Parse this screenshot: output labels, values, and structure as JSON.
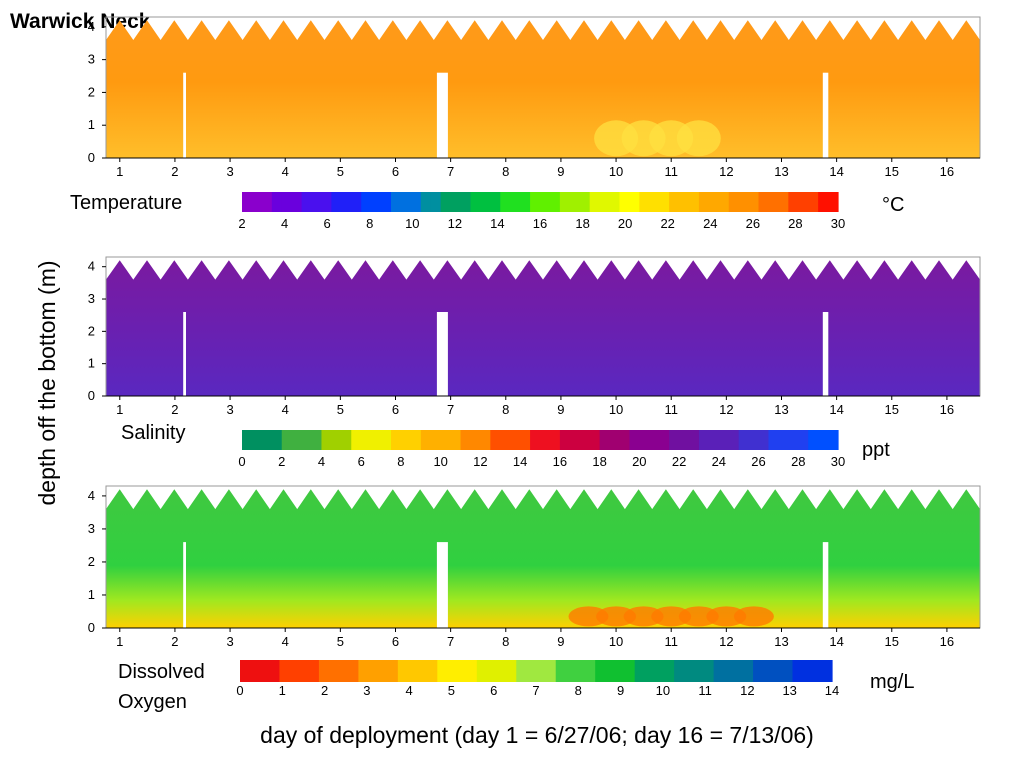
{
  "title": "Warwick Neck",
  "y_axis_label": "depth off the bottom (m)",
  "x_axis_label": "day of deployment (day 1 = 6/27/06; day 16 = 7/13/06)",
  "chart_data": [
    {
      "type": "heatmap",
      "name": "Temperature",
      "unit": "°C",
      "x_ticks": [
        "1",
        "2",
        "3",
        "4",
        "5",
        "6",
        "7",
        "8",
        "9",
        "10",
        "11",
        "12",
        "13",
        "14",
        "15",
        "16"
      ],
      "y_ticks": [
        "0",
        "1",
        "2",
        "3",
        "4"
      ],
      "xlim": [
        0.75,
        16.6
      ],
      "ylim": [
        0,
        4.3
      ],
      "colorbar": {
        "label": "Temperature",
        "unit_label": "°C",
        "ticks": [
          "2",
          "4",
          "6",
          "8",
          "10",
          "12",
          "14",
          "16",
          "18",
          "20",
          "22",
          "24",
          "26",
          "28",
          "30"
        ],
        "range": [
          2,
          30
        ],
        "colors": [
          "#8a00cc",
          "#6a00dd",
          "#4a10ee",
          "#2020f8",
          "#0040ff",
          "#0070e0",
          "#008fa0",
          "#00a060",
          "#00c040",
          "#20e020",
          "#60f000",
          "#a0f000",
          "#e0f800",
          "#ffff00",
          "#ffe000",
          "#ffc000",
          "#ffa800",
          "#ff9000",
          "#ff7000",
          "#ff4000",
          "#ff1000"
        ]
      },
      "dominant_value_range": [
        20,
        24
      ],
      "warm_spots_days": [
        10,
        10.5,
        11,
        11.5
      ]
    },
    {
      "type": "heatmap",
      "name": "Salinity",
      "unit": "ppt",
      "x_ticks": [
        "1",
        "2",
        "3",
        "4",
        "5",
        "6",
        "7",
        "8",
        "9",
        "10",
        "11",
        "12",
        "13",
        "14",
        "15",
        "16"
      ],
      "y_ticks": [
        "0",
        "1",
        "2",
        "3",
        "4"
      ],
      "xlim": [
        0.75,
        16.6
      ],
      "ylim": [
        0,
        4.3
      ],
      "colorbar": {
        "label": "Salinity",
        "unit_label": "ppt",
        "ticks": [
          "0",
          "2",
          "4",
          "6",
          "8",
          "10",
          "12",
          "14",
          "16",
          "18",
          "20",
          "22",
          "24",
          "26",
          "28",
          "30"
        ],
        "range": [
          0,
          30
        ],
        "colors": [
          "#009060",
          "#40b040",
          "#a0d000",
          "#f0f000",
          "#ffd000",
          "#ffb000",
          "#ff8800",
          "#ff5000",
          "#ee1020",
          "#cc0040",
          "#a00070",
          "#8a0090",
          "#7010a0",
          "#5a20b8",
          "#4030d0",
          "#2040f0",
          "#0050ff"
        ]
      },
      "dominant_value_range": [
        26,
        28
      ]
    },
    {
      "type": "heatmap",
      "name": "Dissolved Oxygen",
      "unit": "mg/L",
      "x_ticks": [
        "1",
        "2",
        "3",
        "4",
        "5",
        "6",
        "7",
        "8",
        "9",
        "10",
        "11",
        "12",
        "13",
        "14",
        "15",
        "16"
      ],
      "y_ticks": [
        "0",
        "1",
        "2",
        "3",
        "4"
      ],
      "xlim": [
        0.75,
        16.6
      ],
      "ylim": [
        0,
        4.3
      ],
      "colorbar": {
        "label_line1": "Dissolved",
        "label_line2": "Oxygen",
        "unit_label": "mg/L",
        "ticks": [
          "0",
          "1",
          "2",
          "3",
          "4",
          "5",
          "6",
          "7",
          "8",
          "9",
          "10",
          "11",
          "12",
          "13",
          "14"
        ],
        "range": [
          0,
          14
        ],
        "colors": [
          "#ee1010",
          "#ff4000",
          "#ff7000",
          "#ffa000",
          "#ffc800",
          "#ffee00",
          "#e0f000",
          "#a0e840",
          "#40d040",
          "#10c030",
          "#00a060",
          "#008a80",
          "#0070a0",
          "#0050c0",
          "#0030e0"
        ]
      },
      "dominant_value_range": [
        6,
        9
      ],
      "low_do_days": [
        9.5,
        10,
        10.5,
        11,
        11.5,
        12,
        12.5
      ]
    }
  ]
}
